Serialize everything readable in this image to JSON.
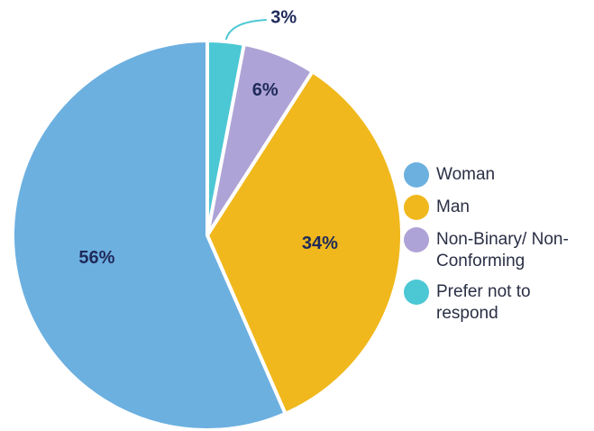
{
  "chart_data": {
    "type": "pie",
    "categories": [
      "Woman",
      "Man",
      "Non-Binary/ Non-Conforming",
      "Prefer not to respond"
    ],
    "values": [
      56,
      34,
      6,
      3
    ],
    "value_labels": [
      "56%",
      "34%",
      "6%",
      "3%"
    ],
    "colors": [
      "#6cb0e0",
      "#f0b81c",
      "#aea3d6",
      "#4cc7d4"
    ],
    "legend": "right"
  }
}
